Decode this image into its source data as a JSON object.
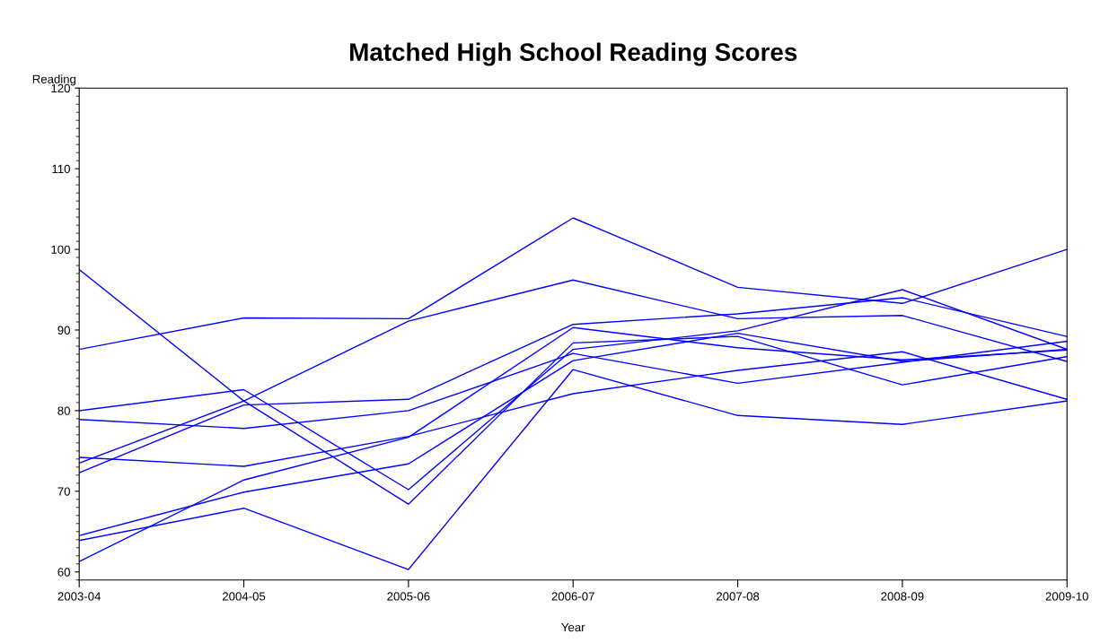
{
  "chart_data": {
    "type": "line",
    "title": "Matched High School Reading Scores",
    "xlabel": "Year",
    "ylabel": "Reading",
    "categories": [
      "2003-04",
      "2004-05",
      "2005-06",
      "2006-07",
      "2007-08",
      "2008-09",
      "2009-10"
    ],
    "ylim": [
      59,
      120
    ],
    "yticks": [
      60,
      70,
      80,
      90,
      100,
      110,
      120
    ],
    "grid": false,
    "legend": false,
    "marker": "none",
    "line_style": "solid",
    "series": [
      {
        "color": "#0000ff",
        "values": [
          97.5,
          81.2,
          68.4,
          88.4,
          89.2,
          83.2,
          86.7
        ]
      },
      {
        "color": "#0000ff",
        "values": [
          80.0,
          82.6,
          70.2,
          87.6,
          89.9,
          95.0,
          87.6
        ]
      },
      {
        "color": "#0000ff",
        "values": [
          87.6,
          91.5,
          91.4,
          103.9,
          95.3,
          93.3,
          100.0
        ]
      },
      {
        "color": "#0000ff",
        "values": [
          73.5,
          81.2,
          91.1,
          96.2,
          91.4,
          91.8,
          86.1
        ]
      },
      {
        "color": "#0000ff",
        "values": [
          72.3,
          80.7,
          81.4,
          90.7,
          92.0,
          94.0,
          89.2
        ]
      },
      {
        "color": "#0000ff",
        "values": [
          78.9,
          77.8,
          80.0,
          87.1,
          83.4,
          86.0,
          88.6
        ]
      },
      {
        "color": "#0000ff",
        "values": [
          74.2,
          73.1,
          76.8,
          82.1,
          85.0,
          87.3,
          81.4
        ]
      },
      {
        "color": "#0000ff",
        "values": [
          61.3,
          71.4,
          76.7,
          90.3,
          87.8,
          86.3,
          87.5
        ]
      },
      {
        "color": "#0000ff",
        "values": [
          64.5,
          69.9,
          73.4,
          86.2,
          89.6,
          86.1,
          87.6
        ]
      },
      {
        "color": "#0000ff",
        "values": [
          63.9,
          67.9,
          60.3,
          85.1,
          79.4,
          78.3,
          81.2
        ]
      }
    ]
  }
}
